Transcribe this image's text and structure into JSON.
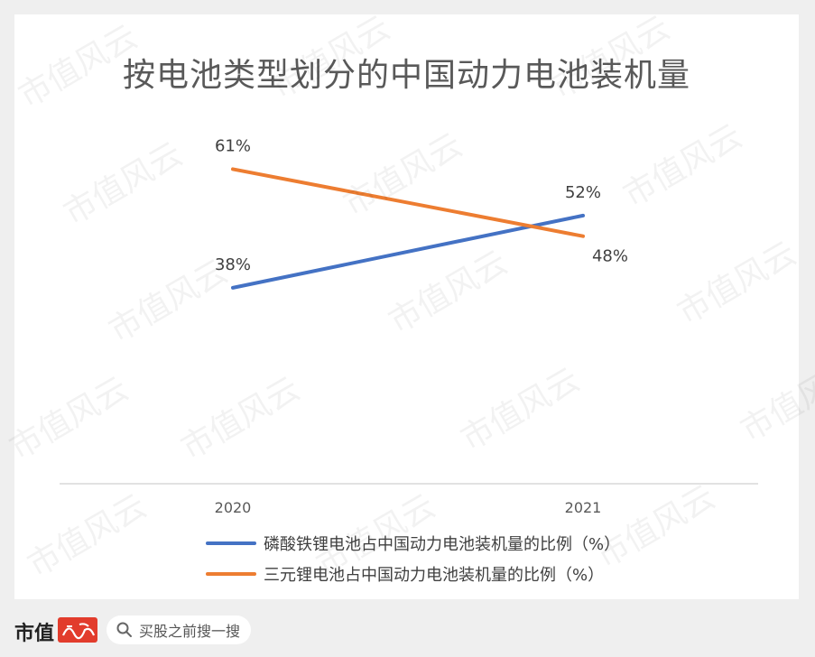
{
  "chart_data": {
    "type": "line",
    "title": "按电池类型划分的中国动力电池装机量",
    "categories": [
      "2020",
      "2021"
    ],
    "series": [
      {
        "name": "磷酸铁锂电池占中国动力电池装机量的比例（%）",
        "values": [
          38,
          52
        ],
        "labels": [
          "38%",
          "52%"
        ],
        "color": "#4472c4"
      },
      {
        "name": "三元锂电池占中国动力电池装机量的比例（%）",
        "values": [
          61,
          48
        ],
        "labels": [
          "61%",
          "48%"
        ],
        "color": "#ed7d31"
      }
    ],
    "ylim": [
      0,
      70
    ],
    "grid": false,
    "legend_position": "bottom"
  },
  "footer": {
    "brand": "市值",
    "search_placeholder": "买股之前搜一搜"
  },
  "watermark": {
    "text": "市值风云"
  }
}
